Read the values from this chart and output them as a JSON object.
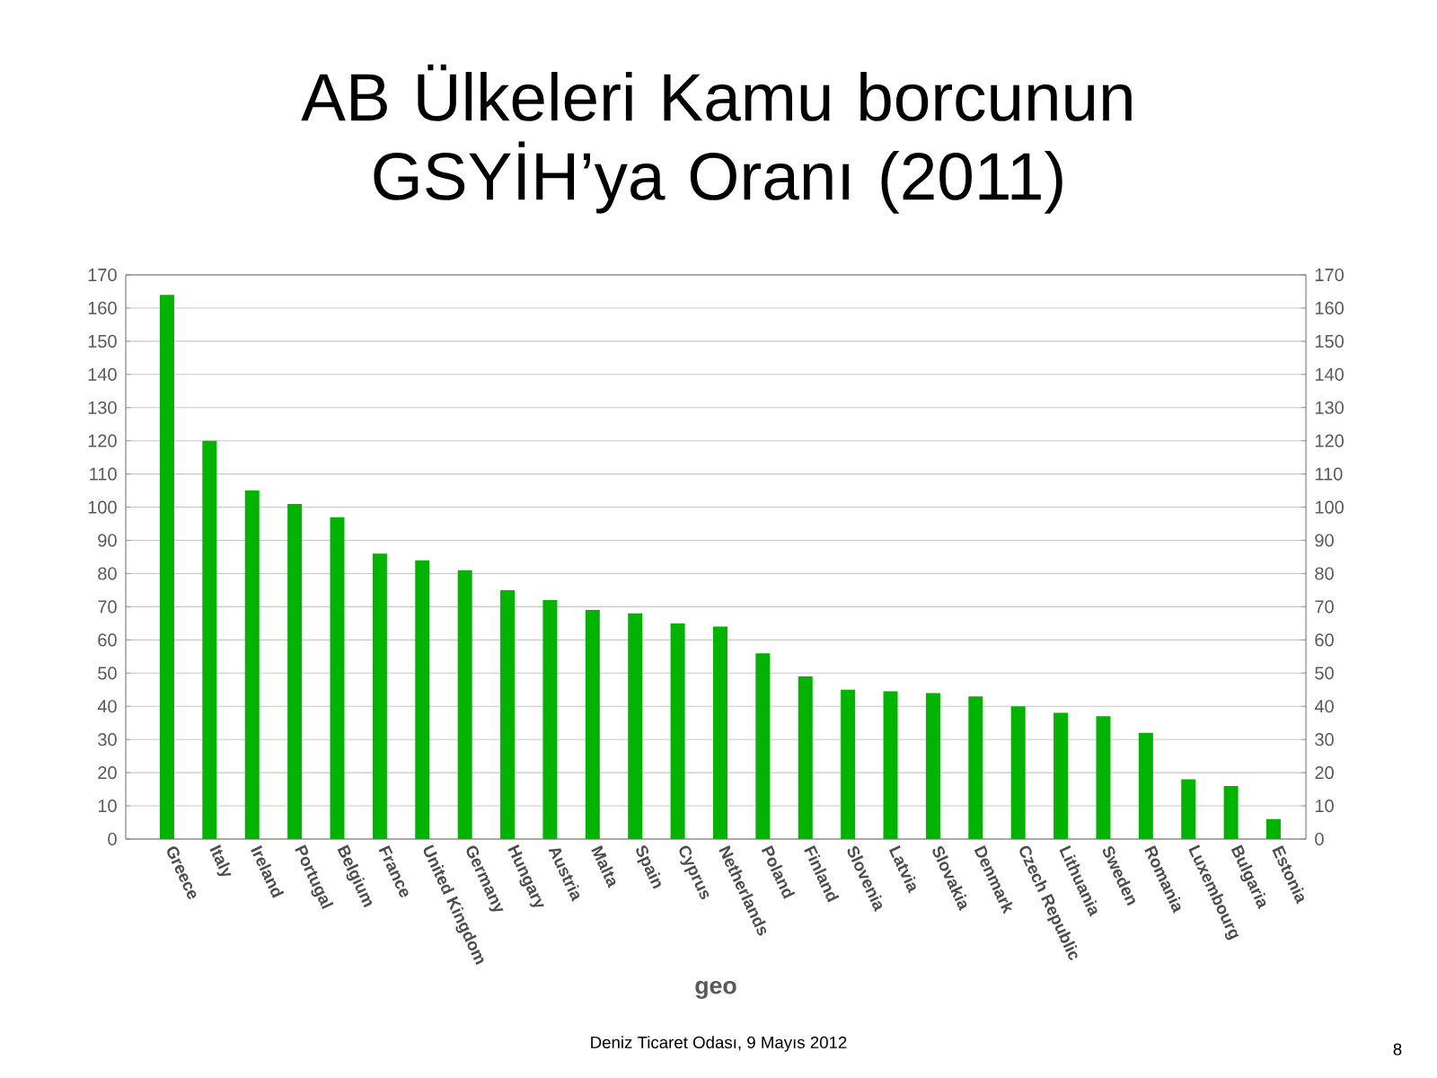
{
  "chart_data": {
    "type": "bar",
    "title": "AB Ülkeleri Kamu borcunun GSYİH’ya Oranı (2011)",
    "xlabel": "geo",
    "categories": [
      "Greece",
      "Italy",
      "Ireland",
      "Portugal",
      "Belgium",
      "France",
      "United Kingdom",
      "Germany",
      "Hungary",
      "Austria",
      "Malta",
      "Spain",
      "Cyprus",
      "Netherlands",
      "Poland",
      "Finland",
      "Slovenia",
      "Latvia",
      "Slovakia",
      "Denmark",
      "Czech Republic",
      "Lithuania",
      "Sweden",
      "Romania",
      "Luxembourg",
      "Bulgaria",
      "Estonia"
    ],
    "values": [
      164,
      120,
      105,
      101,
      97,
      86,
      84,
      81,
      75,
      72,
      69,
      68,
      65,
      64,
      56,
      49,
      45,
      44.5,
      44,
      43,
      40,
      38,
      37,
      32,
      18,
      16,
      6
    ],
    "color": "#00b400",
    "ylim": [
      0,
      170
    ],
    "yticks": [
      0,
      10,
      20,
      30,
      40,
      50,
      60,
      70,
      80,
      90,
      100,
      110,
      120,
      130,
      140,
      150,
      160,
      170
    ],
    "y2lim": [
      0,
      170
    ],
    "y2ticks": [
      0,
      10,
      20,
      30,
      40,
      50,
      60,
      70,
      80,
      90,
      100,
      110,
      120,
      130,
      140,
      150,
      160,
      170
    ],
    "grid": "y",
    "annotations": [
      "Deniz Ticaret Odası, 9 Mayıs 2012",
      "8"
    ]
  }
}
